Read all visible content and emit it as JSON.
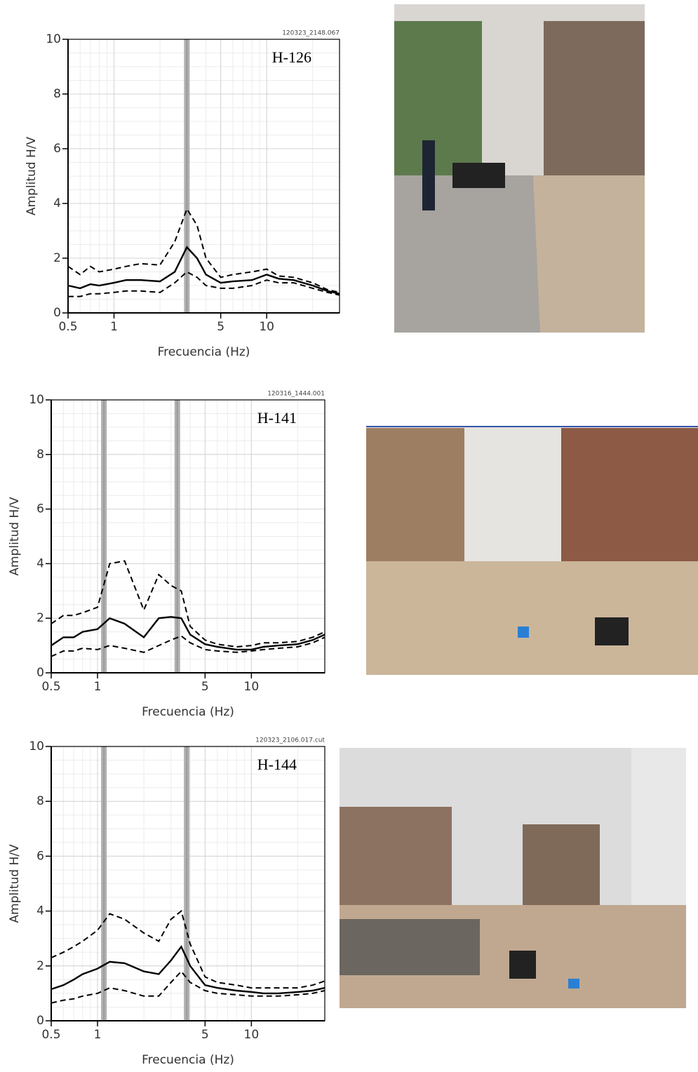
{
  "chart_data": [
    {
      "type": "line",
      "xlabel": "Frecuencia (Hz)",
      "ylabel": "Amplitud H/V",
      "label": "H-126",
      "file": "120323_2148.067",
      "xscale": "log",
      "grid": true,
      "xlim": [
        0.5,
        30
      ],
      "ylim": [
        0,
        10
      ],
      "xticks": [
        0.5,
        1,
        5,
        10
      ],
      "yticks": [
        0,
        2,
        4,
        6,
        8,
        10
      ],
      "peaks": [
        3.0
      ],
      "peak_color": "#b0b0b0",
      "x": [
        0.5,
        0.6,
        0.7,
        0.8,
        1,
        1.2,
        1.5,
        2,
        2.5,
        3,
        3.5,
        4,
        5,
        6,
        8,
        10,
        12,
        15,
        20,
        25,
        30
      ],
      "series": [
        {
          "color": "#000000",
          "dashed": false,
          "values": [
            1.0,
            0.9,
            1.05,
            1.0,
            1.1,
            1.2,
            1.2,
            1.15,
            1.5,
            2.4,
            2.0,
            1.4,
            1.1,
            1.15,
            1.2,
            1.4,
            1.25,
            1.2,
            1.0,
            0.8,
            0.7
          ]
        },
        {
          "color": "#000000",
          "dashed": true,
          "values": [
            1.7,
            1.4,
            1.7,
            1.5,
            1.6,
            1.7,
            1.8,
            1.75,
            2.6,
            3.8,
            3.2,
            2.0,
            1.3,
            1.4,
            1.5,
            1.6,
            1.35,
            1.3,
            1.1,
            0.85,
            0.75
          ]
        },
        {
          "color": "#000000",
          "dashed": true,
          "values": [
            0.6,
            0.6,
            0.7,
            0.7,
            0.75,
            0.8,
            0.8,
            0.75,
            1.1,
            1.5,
            1.3,
            1.0,
            0.9,
            0.9,
            1.0,
            1.2,
            1.1,
            1.1,
            0.9,
            0.75,
            0.65
          ]
        }
      ]
    },
    {
      "type": "line",
      "xlabel": "Frecuencia (Hz)",
      "ylabel": "Amplitud H/V",
      "label": "H-141",
      "file": "120316_1444.001",
      "xscale": "log",
      "grid": true,
      "xlim": [
        0.5,
        30
      ],
      "ylim": [
        0,
        10
      ],
      "xticks": [
        0.5,
        1,
        5,
        10
      ],
      "yticks": [
        0,
        2,
        4,
        6,
        8,
        10
      ],
      "peaks": [
        1.1,
        3.3
      ],
      "peak_color": "#b0b0b0",
      "x": [
        0.5,
        0.6,
        0.7,
        0.8,
        1,
        1.2,
        1.5,
        2,
        2.5,
        3,
        3.5,
        4,
        5,
        6,
        8,
        10,
        12,
        15,
        20,
        25,
        30
      ],
      "series": [
        {
          "color": "#000000",
          "dashed": false,
          "values": [
            1.0,
            1.3,
            1.3,
            1.5,
            1.6,
            2.0,
            1.8,
            1.3,
            2.0,
            2.05,
            2.0,
            1.4,
            1.05,
            0.95,
            0.85,
            0.85,
            0.95,
            1.0,
            1.05,
            1.2,
            1.4
          ]
        },
        {
          "color": "#000000",
          "dashed": true,
          "values": [
            1.8,
            2.1,
            2.1,
            2.2,
            2.4,
            4.0,
            4.1,
            2.3,
            3.6,
            3.2,
            3.0,
            1.7,
            1.2,
            1.05,
            0.95,
            1.0,
            1.1,
            1.1,
            1.15,
            1.3,
            1.5
          ]
        },
        {
          "color": "#000000",
          "dashed": true,
          "values": [
            0.6,
            0.8,
            0.8,
            0.9,
            0.85,
            1.0,
            0.9,
            0.75,
            1.0,
            1.2,
            1.35,
            1.1,
            0.85,
            0.8,
            0.75,
            0.8,
            0.85,
            0.9,
            0.95,
            1.1,
            1.3
          ]
        }
      ]
    },
    {
      "type": "line",
      "xlabel": "Frecuencia (Hz)",
      "ylabel": "Amplitud H/V",
      "label": "H-144",
      "file": "120323_2106.017.cut",
      "xscale": "log",
      "grid": true,
      "xlim": [
        0.5,
        30
      ],
      "ylim": [
        0,
        10
      ],
      "xticks": [
        0.5,
        1,
        5,
        10
      ],
      "yticks": [
        0,
        2,
        4,
        6,
        8,
        10
      ],
      "peaks": [
        1.1,
        3.8
      ],
      "peak_color": "#b0b0b0",
      "x": [
        0.5,
        0.6,
        0.7,
        0.8,
        1,
        1.2,
        1.5,
        2,
        2.5,
        3,
        3.5,
        4,
        5,
        6,
        8,
        10,
        12,
        15,
        20,
        25,
        30
      ],
      "series": [
        {
          "color": "#000000",
          "dashed": false,
          "values": [
            1.15,
            1.3,
            1.5,
            1.7,
            1.9,
            2.15,
            2.1,
            1.8,
            1.7,
            2.2,
            2.7,
            2.0,
            1.3,
            1.2,
            1.1,
            1.05,
            1.0,
            1.0,
            1.05,
            1.1,
            1.2
          ]
        },
        {
          "color": "#000000",
          "dashed": true,
          "values": [
            2.3,
            2.5,
            2.7,
            2.9,
            3.3,
            3.9,
            3.7,
            3.2,
            2.9,
            3.7,
            4.0,
            2.8,
            1.6,
            1.4,
            1.3,
            1.2,
            1.2,
            1.2,
            1.2,
            1.3,
            1.45
          ]
        },
        {
          "color": "#000000",
          "dashed": true,
          "values": [
            0.65,
            0.75,
            0.8,
            0.9,
            1.0,
            1.2,
            1.1,
            0.9,
            0.9,
            1.4,
            1.8,
            1.4,
            1.1,
            1.0,
            0.95,
            0.9,
            0.9,
            0.9,
            0.95,
            1.0,
            1.1
          ]
        }
      ]
    }
  ]
}
